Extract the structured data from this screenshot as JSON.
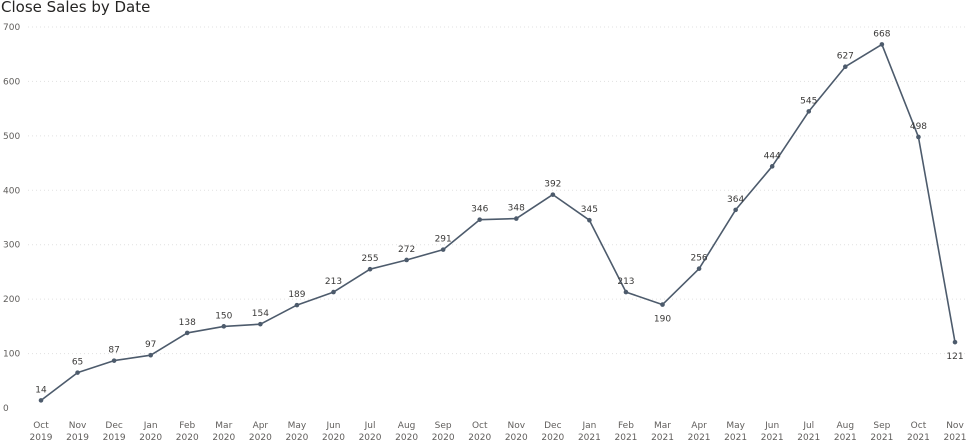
{
  "chart_data": {
    "type": "line",
    "title": "Close Sales by Date",
    "xlabel": "",
    "ylabel": "",
    "ylim": [
      0,
      700
    ],
    "yticks": [
      0,
      100,
      200,
      300,
      400,
      500,
      600,
      700
    ],
    "grid": true,
    "legend": "none",
    "line_color": "#4d5b6c",
    "categories": [
      [
        "Oct",
        "2019"
      ],
      [
        "Nov",
        "2019"
      ],
      [
        "Dec",
        "2019"
      ],
      [
        "Jan",
        "2020"
      ],
      [
        "Feb",
        "2020"
      ],
      [
        "Mar",
        "2020"
      ],
      [
        "Apr",
        "2020"
      ],
      [
        "May",
        "2020"
      ],
      [
        "Jun",
        "2020"
      ],
      [
        "Jul",
        "2020"
      ],
      [
        "Aug",
        "2020"
      ],
      [
        "Sep",
        "2020"
      ],
      [
        "Oct",
        "2020"
      ],
      [
        "Nov",
        "2020"
      ],
      [
        "Dec",
        "2020"
      ],
      [
        "Jan",
        "2021"
      ],
      [
        "Feb",
        "2021"
      ],
      [
        "Mar",
        "2021"
      ],
      [
        "Apr",
        "2021"
      ],
      [
        "May",
        "2021"
      ],
      [
        "Jun",
        "2021"
      ],
      [
        "Jul",
        "2021"
      ],
      [
        "Aug",
        "2021"
      ],
      [
        "Sep",
        "2021"
      ],
      [
        "Oct",
        "2021"
      ],
      [
        "Nov",
        "2021"
      ]
    ],
    "values": [
      14,
      65,
      87,
      97,
      138,
      150,
      154,
      189,
      213,
      255,
      272,
      291,
      346,
      348,
      392,
      345,
      213,
      190,
      256,
      364,
      444,
      545,
      627,
      668,
      498,
      121
    ]
  }
}
